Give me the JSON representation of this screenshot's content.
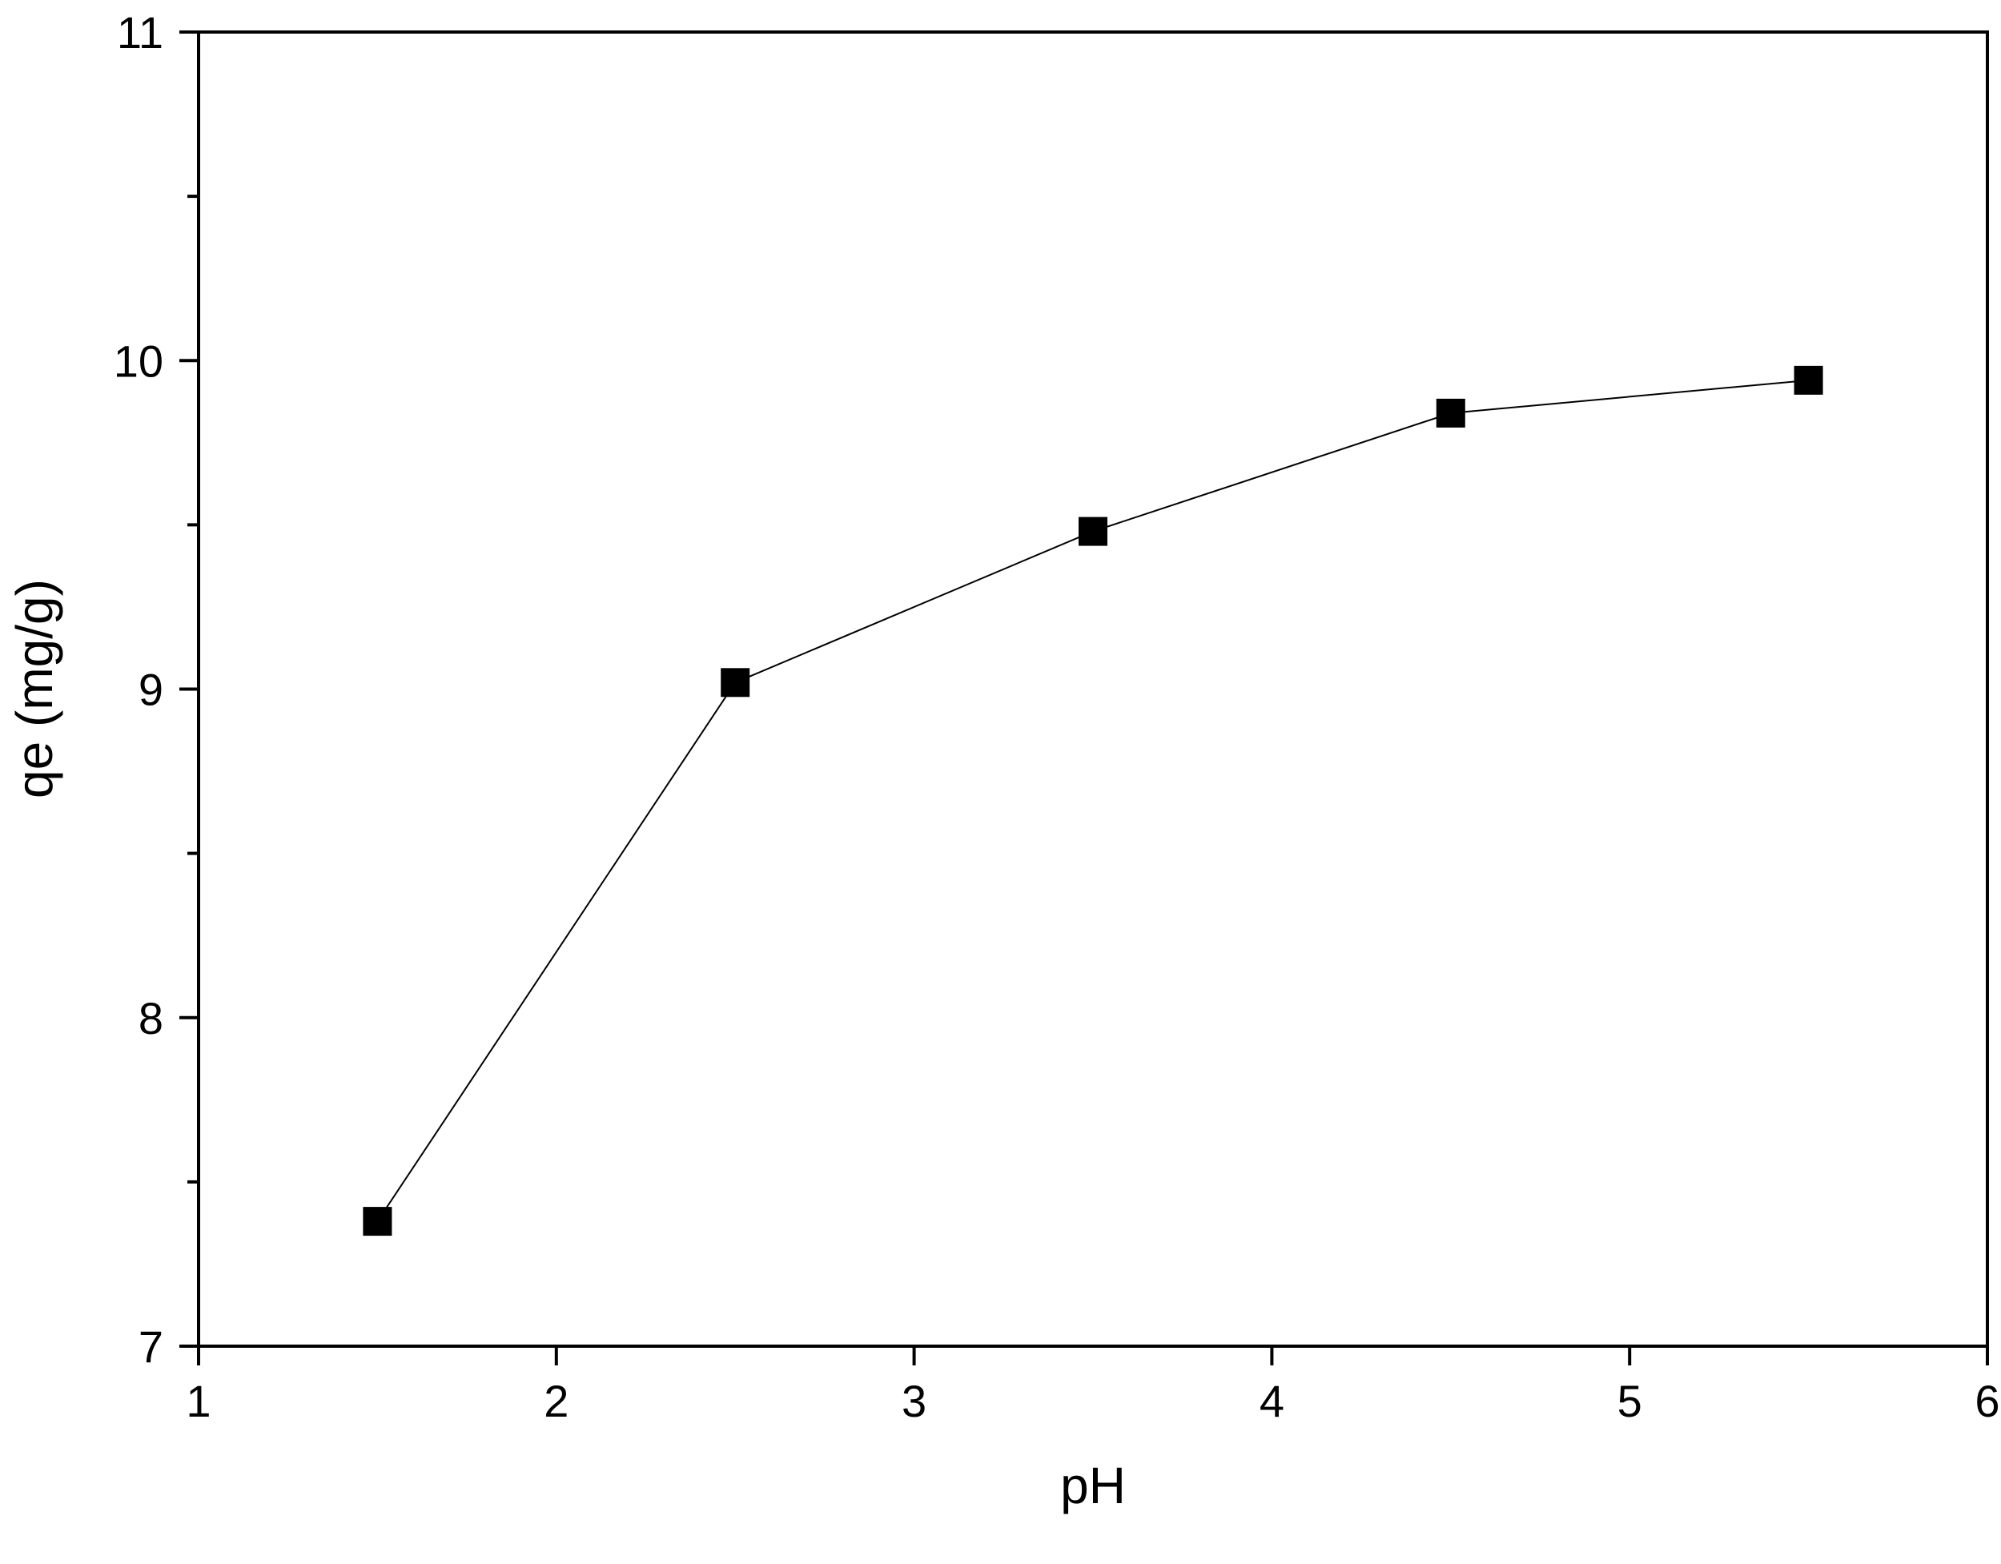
{
  "chart_data": {
    "type": "line",
    "title": "",
    "xlabel": "pH",
    "ylabel": "qe (mg/g)",
    "xlim": [
      1,
      6
    ],
    "ylim": [
      7,
      11
    ],
    "x_ticks": [
      1,
      2,
      3,
      4,
      5,
      6
    ],
    "x_tick_labels": [
      "1",
      "2",
      "3",
      "4",
      "5",
      "6"
    ],
    "y_ticks": [
      7,
      8,
      9,
      10,
      11
    ],
    "y_tick_labels": [
      "7",
      "8",
      "9",
      "10",
      "11"
    ],
    "y_minor_ticks": [
      7.5,
      8.5,
      9.5,
      10.5
    ],
    "grid": false,
    "legend": "none",
    "series": [
      {
        "marker": "square",
        "color": "#000000",
        "x": [
          1.5,
          2.5,
          3.5,
          4.5,
          5.5
        ],
        "y": [
          7.38,
          9.02,
          9.48,
          9.84,
          9.94
        ]
      }
    ]
  }
}
